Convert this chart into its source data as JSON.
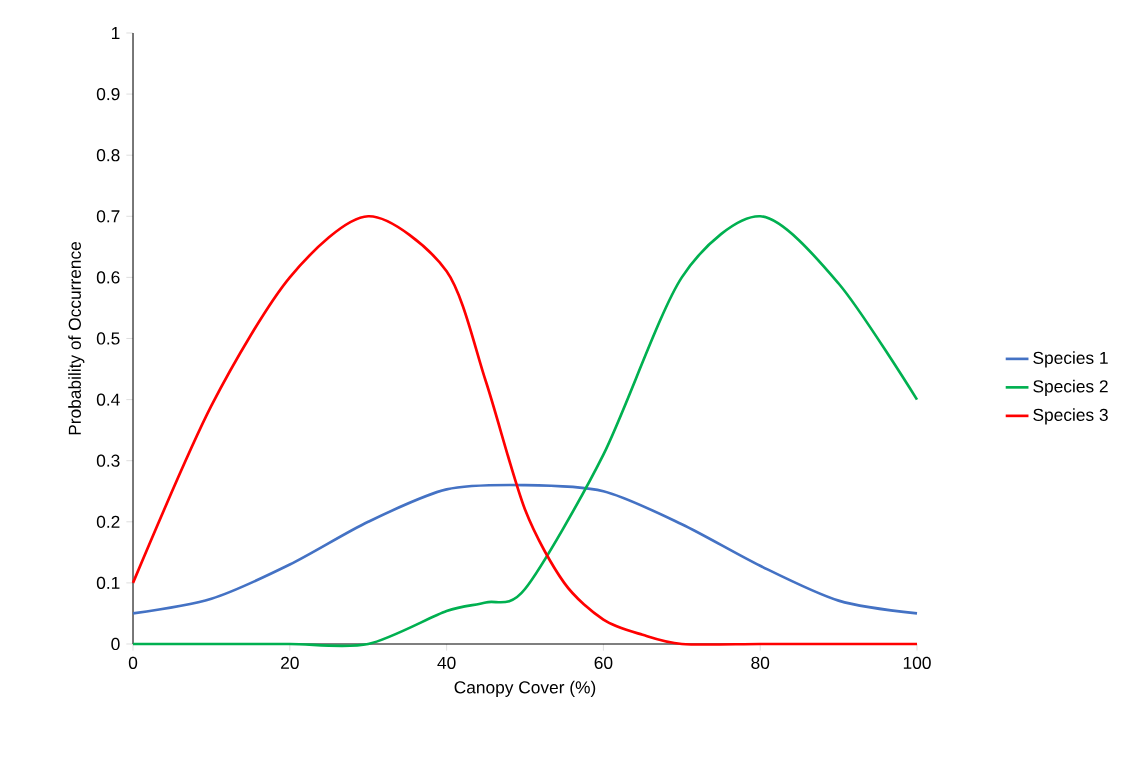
{
  "chart_data": {
    "type": "line",
    "xlabel": "Canopy Cover (%)",
    "ylabel": "Probability of Occurrence",
    "xlim": [
      0,
      100
    ],
    "xticks": [
      0,
      20,
      40,
      60,
      80,
      100
    ],
    "ylim": [
      0,
      1
    ],
    "yticks": [
      0,
      0.1,
      0.2,
      0.3,
      0.4,
      0.5,
      0.6,
      0.7,
      0.8,
      0.9,
      1
    ],
    "grid": false,
    "legend": "right",
    "marker": "none",
    "line_style": "solid",
    "series": [
      {
        "name": "Species 1",
        "color": "#4472c4",
        "x": [
          0,
          10,
          20,
          30,
          40,
          50,
          60,
          70,
          80,
          90,
          100
        ],
        "values": [
          0.05,
          0.074,
          0.13,
          0.2,
          0.253,
          0.26,
          0.25,
          0.196,
          0.128,
          0.071,
          0.05
        ]
      },
      {
        "name": "Species 2",
        "color": "#00b050",
        "x": [
          0,
          10,
          20,
          30,
          40,
          45,
          50,
          60,
          70,
          80,
          90,
          100
        ],
        "values": [
          0,
          0,
          0,
          0,
          0.054,
          0.068,
          0.09,
          0.31,
          0.6,
          0.7,
          0.59,
          0.4
        ]
      },
      {
        "name": "Species 3",
        "color": "#ff0000",
        "x": [
          0,
          10,
          20,
          30,
          40,
          45,
          50,
          55,
          60,
          65,
          70,
          80,
          90,
          100
        ],
        "values": [
          0.1,
          0.39,
          0.6,
          0.7,
          0.61,
          0.43,
          0.22,
          0.1,
          0.04,
          0.015,
          0,
          0,
          0,
          0
        ]
      }
    ]
  }
}
